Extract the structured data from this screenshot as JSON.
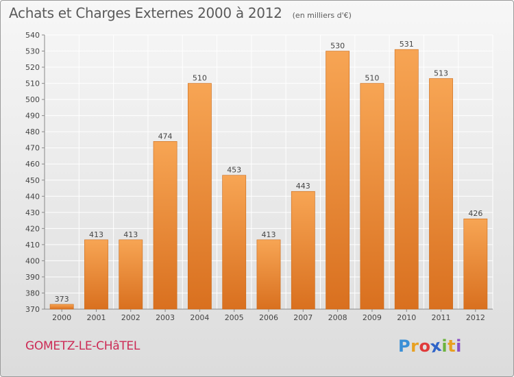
{
  "header": {
    "title": "Achats et Charges Externes 2000 à 2012",
    "unit": "(en milliers d'€)"
  },
  "footer": {
    "place": "GOMETZ-LE-CHâTEL",
    "brand_letters": [
      {
        "ch": "P",
        "color": "#3a8fd6"
      },
      {
        "ch": "r",
        "color": "#e8a020"
      },
      {
        "ch": "o",
        "color": "#e03a3a"
      },
      {
        "ch": "x",
        "color": "#2f64c8"
      },
      {
        "ch": "i",
        "color": "#6cb33e"
      },
      {
        "ch": "t",
        "color": "#e8a020"
      },
      {
        "ch": "i",
        "color": "#8a4fc4"
      }
    ]
  },
  "colors": {
    "bar_light": "#f7a554",
    "bar_dark": "#d9701f",
    "bar_edge": "#c96a1a",
    "grid": "#ffffff",
    "text": "#444444",
    "accent_place": "#cc2a55"
  },
  "chart_data": {
    "type": "bar",
    "categories": [
      "2000",
      "2001",
      "2002",
      "2003",
      "2004",
      "2005",
      "2006",
      "2007",
      "2008",
      "2009",
      "2010",
      "2011",
      "2012"
    ],
    "values": [
      373,
      413,
      413,
      474,
      510,
      453,
      413,
      443,
      530,
      510,
      531,
      513,
      426
    ],
    "title": "Achats et Charges Externes 2000 à 2012",
    "ylim": [
      370,
      540
    ],
    "yticks": [
      370,
      380,
      390,
      400,
      410,
      420,
      430,
      440,
      450,
      460,
      470,
      480,
      490,
      500,
      510,
      520,
      530,
      540
    ],
    "grid": true,
    "data_labels": true
  }
}
